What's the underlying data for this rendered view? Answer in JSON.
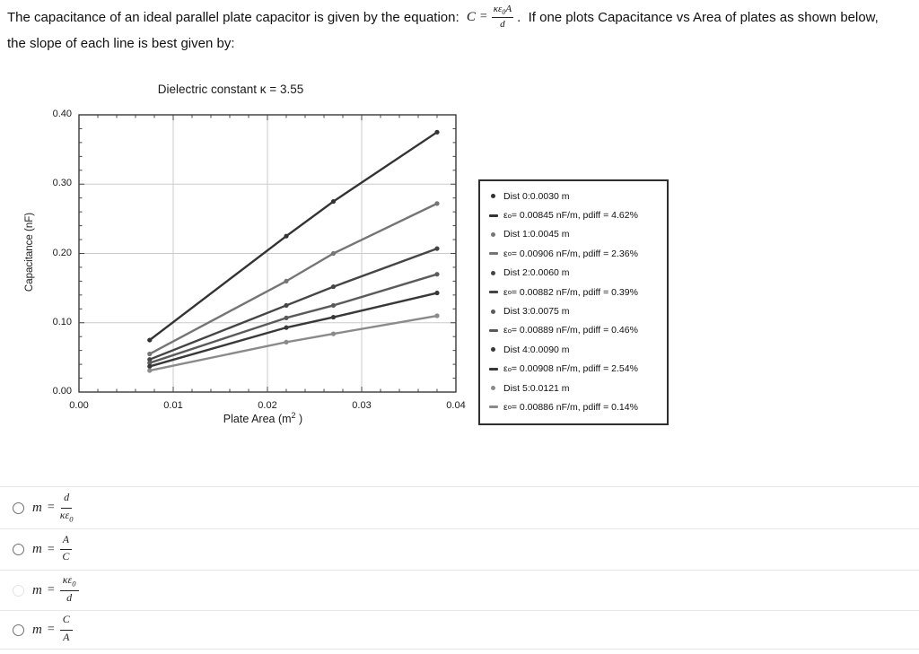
{
  "question": {
    "text_before_equation": "The capacitance of an ideal parallel plate capacitor is given by the equation: ",
    "eq_lhs": "C",
    "eq_sign": "=",
    "eq_num_a": "κε",
    "eq_num_sub": "0",
    "eq_num_b": "A",
    "eq_den": "d",
    "text_after_equation": ".  If one plots Capacitance vs Area of plates as shown below,",
    "text_line2": "the slope of each line is best given by:"
  },
  "chart_data": {
    "type": "line",
    "title": "Dielectric constant κ = 3.55",
    "xlabel_main": "Plate Area (m",
    "xlabel_sup": "2",
    "xlabel_end": " )",
    "ylabel": "Capacitance (nF)",
    "xlim": [
      0,
      0.04
    ],
    "ylim": [
      0,
      0.4
    ],
    "xtick_labels": [
      "0.00",
      "0.01",
      "0.02",
      "0.03",
      "0.04"
    ],
    "ytick_labels": [
      "0.00",
      "0.10",
      "0.20",
      "0.30",
      "0.40"
    ],
    "grid": true,
    "legend_position": "right",
    "x": [
      0.0075,
      0.022,
      0.027,
      0.038
    ],
    "series": [
      {
        "name": "Dist 0:0.0030 m",
        "distance_m": 0.003,
        "color": "#333333",
        "values": [
          0.075,
          0.225,
          0.275,
          0.375
        ],
        "eps0_fit": "0.00845 nF/m",
        "pdiff": "4.62%"
      },
      {
        "name": "Dist 1:0.0045 m",
        "distance_m": 0.0045,
        "color": "#757575",
        "values": [
          0.055,
          0.16,
          0.2,
          0.272
        ],
        "eps0_fit": "0.00906 nF/m",
        "pdiff": "2.36%"
      },
      {
        "name": "Dist 2:0.0060 m",
        "distance_m": 0.006,
        "color": "#454545",
        "values": [
          0.047,
          0.125,
          0.152,
          0.207
        ],
        "eps0_fit": "0.00882 nF/m",
        "pdiff": "0.39%"
      },
      {
        "name": "Dist 3:0.0075 m",
        "distance_m": 0.0075,
        "color": "#5a5a5a",
        "values": [
          0.042,
          0.107,
          0.125,
          0.17
        ],
        "eps0_fit": "0.00889 nF/m",
        "pdiff": "0.46%"
      },
      {
        "name": "Dist 4:0.0090 m",
        "distance_m": 0.009,
        "color": "#383838",
        "values": [
          0.037,
          0.093,
          0.108,
          0.143
        ],
        "eps0_fit": "0.00908 nF/m",
        "pdiff": "2.54%"
      },
      {
        "name": "Dist 5:0.0121 m",
        "distance_m": 0.0121,
        "color": "#8a8a8a",
        "values": [
          0.031,
          0.072,
          0.084,
          0.11
        ],
        "eps0_fit": "0.00886 nF/m",
        "pdiff": "0.14%"
      }
    ],
    "colors": {
      "grid": "#cbcbcb",
      "frame": "#2a2a2a",
      "tick": "#444444"
    }
  },
  "legend_items": [
    {
      "type": "dot",
      "color": "#333333",
      "text": "Dist 0:0.0030 m"
    },
    {
      "type": "dash",
      "color": "#333333",
      "eps": "ε",
      "eps_sub": "o",
      "text": " = 0.00845 nF/m, pdiff = 4.62%"
    },
    {
      "type": "dot",
      "color": "#757575",
      "text": "Dist 1:0.0045 m"
    },
    {
      "type": "dash",
      "color": "#757575",
      "eps": "ε",
      "eps_sub": "o",
      "text": " = 0.00906 nF/m, pdiff = 2.36%"
    },
    {
      "type": "dot",
      "color": "#454545",
      "text": "Dist 2:0.0060 m"
    },
    {
      "type": "dash",
      "color": "#454545",
      "eps": "ε",
      "eps_sub": "o",
      "text": " = 0.00882 nF/m, pdiff = 0.39%"
    },
    {
      "type": "dot",
      "color": "#5a5a5a",
      "text": "Dist 3:0.0075 m"
    },
    {
      "type": "dash",
      "color": "#5a5a5a",
      "eps": "ε",
      "eps_sub": "o",
      "text": " = 0.00889 nF/m, pdiff = 0.46%"
    },
    {
      "type": "dot",
      "color": "#383838",
      "text": "Dist 4:0.0090 m"
    },
    {
      "type": "dash",
      "color": "#383838",
      "eps": "ε",
      "eps_sub": "o",
      "text": " = 0.00908 nF/m, pdiff = 2.54%"
    },
    {
      "type": "dot",
      "color": "#8a8a8a",
      "text": "Dist 5:0.0121 m"
    },
    {
      "type": "dash",
      "color": "#8a8a8a",
      "eps": "ε",
      "eps_sub": "o",
      "text": " = 0.00886 nF/m, pdiff = 0.14%"
    }
  ],
  "options_lhs": "m",
  "options_sign": "=",
  "options": [
    {
      "num": "d",
      "num_sub": "",
      "den": "κε",
      "den_sub": "0",
      "radio": "normal"
    },
    {
      "num": "A",
      "num_sub": "",
      "den": "C",
      "den_sub": "",
      "radio": "normal"
    },
    {
      "num": "κε",
      "num_sub": "0",
      "den": "d",
      "den_sub": "",
      "radio": "faint"
    },
    {
      "num": "C",
      "num_sub": "",
      "den": "A",
      "den_sub": "",
      "radio": "normal"
    }
  ]
}
